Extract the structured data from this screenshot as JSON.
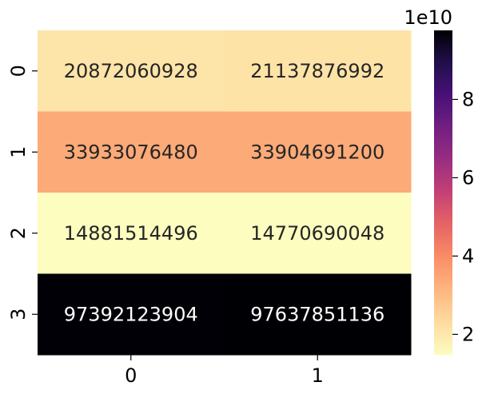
{
  "chart_data": {
    "type": "heatmap",
    "title": "",
    "xlabel": "",
    "ylabel": "",
    "x_categories": [
      "0",
      "1"
    ],
    "y_categories": [
      "0",
      "1",
      "2",
      "3"
    ],
    "values": [
      [
        20872060928,
        21137876992
      ],
      [
        33933076480,
        33904691200
      ],
      [
        14881514496,
        14770690048
      ],
      [
        97392123904,
        97637851136
      ]
    ],
    "cell_labels": [
      [
        "20872060928",
        "21137876992"
      ],
      [
        "33933076480",
        "33904691200"
      ],
      [
        "14881514496",
        "14770690048"
      ],
      [
        "97392123904",
        "97637851136"
      ]
    ],
    "colormap": "magma_r",
    "colorbar": {
      "range": [
        14770690048,
        97637851136
      ],
      "ticks": [
        20000000000,
        40000000000,
        60000000000,
        80000000000
      ],
      "tick_labels": [
        "2",
        "4",
        "6",
        "8"
      ],
      "offset_label": "1e10"
    }
  }
}
